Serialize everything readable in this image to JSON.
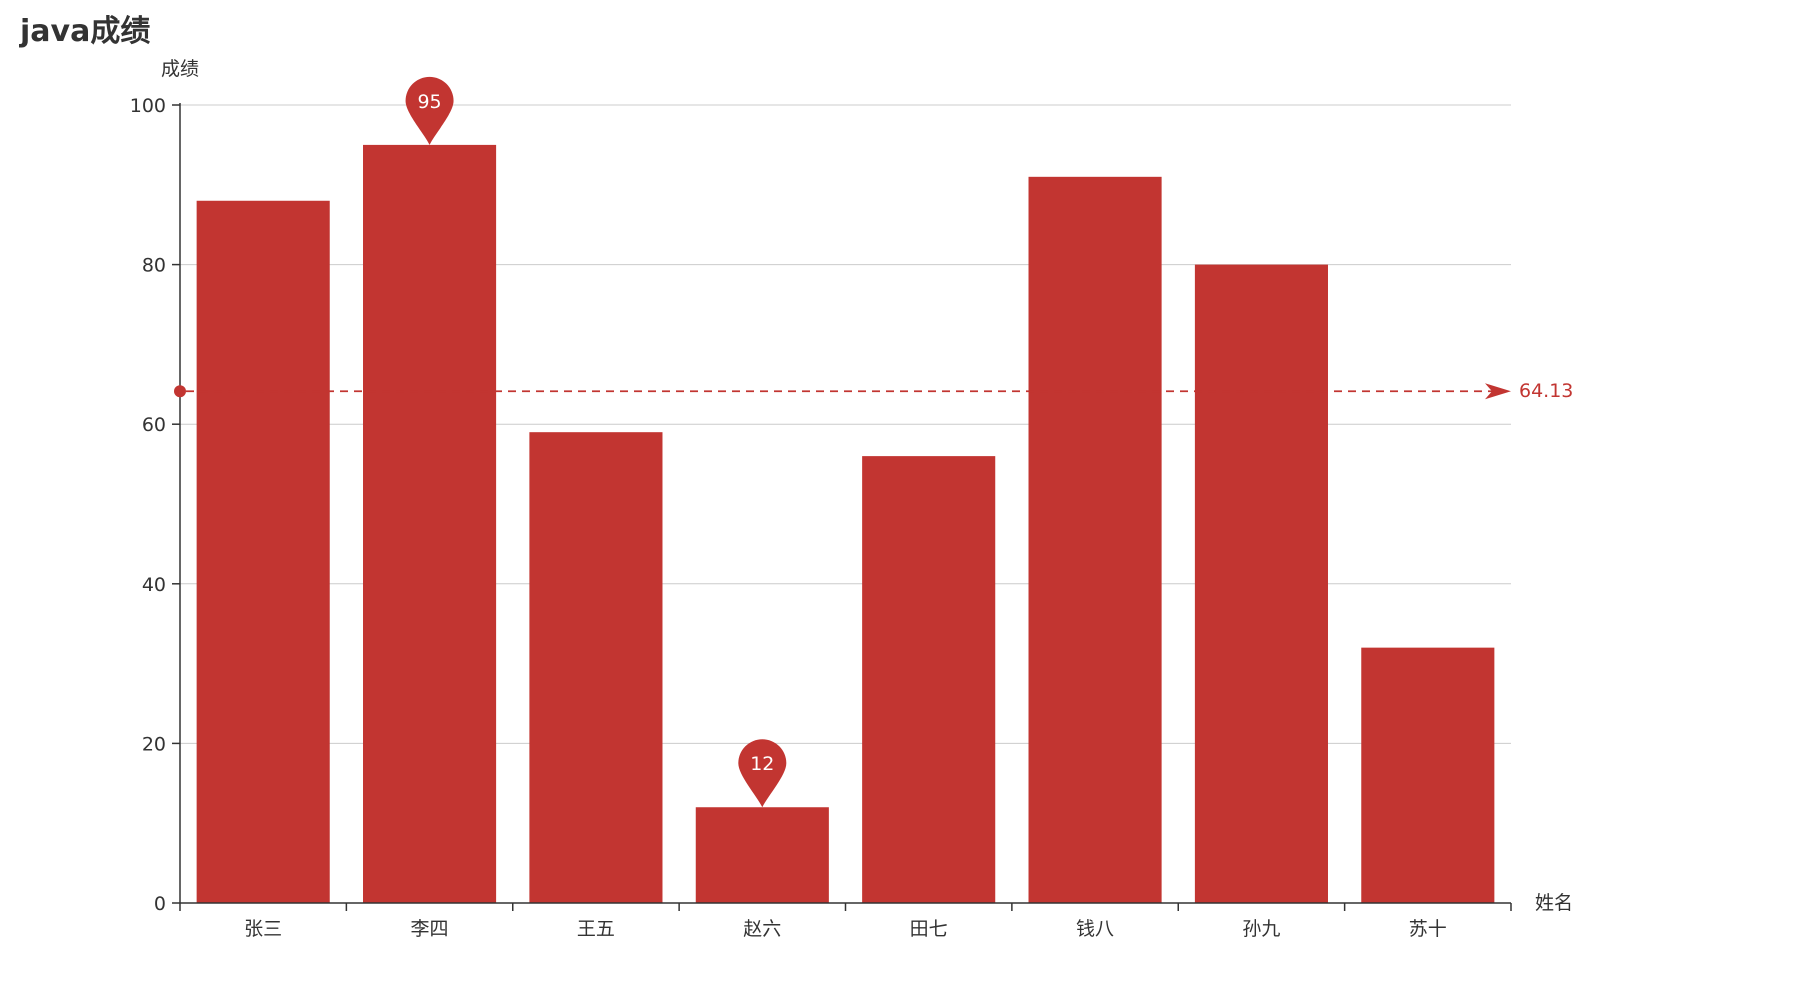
{
  "chart_data": {
    "type": "bar",
    "title": "java成绩",
    "xlabel": "姓名",
    "ylabel": "成绩",
    "categories": [
      "张三",
      "李四",
      "王五",
      "赵六",
      "田七",
      "钱八",
      "孙九",
      "苏十"
    ],
    "series": [
      {
        "values": [
          88,
          95,
          59,
          12,
          56,
          91,
          80,
          32
        ]
      }
    ],
    "ylim": [
      0,
      100
    ],
    "yticks": [
      0,
      20,
      40,
      60,
      80,
      100
    ],
    "grid": true,
    "mark_points": [
      {
        "type": "max",
        "category": "李四",
        "value": 95,
        "label": "95"
      },
      {
        "type": "min",
        "category": "赵六",
        "value": 12,
        "label": "12"
      }
    ],
    "mark_line": {
      "type": "average",
      "value": 64.13,
      "label": "64.13"
    },
    "colors": {
      "bar": "#c23531",
      "grid": "#cccccc",
      "axis": "#333333",
      "text": "#333333"
    }
  }
}
